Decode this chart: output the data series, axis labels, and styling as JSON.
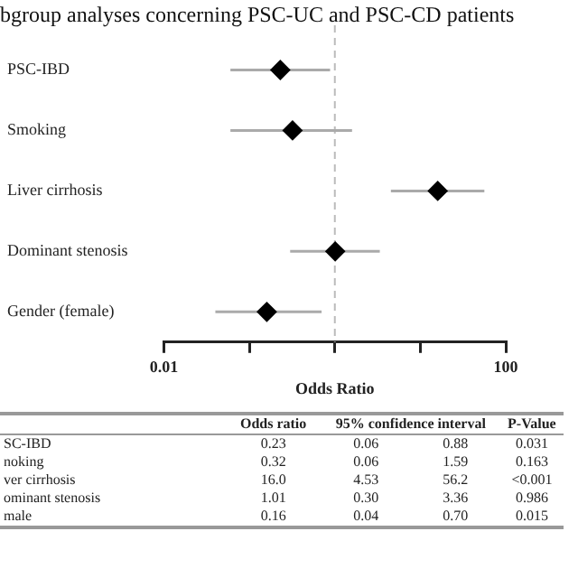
{
  "chart_data": {
    "type": "scatter",
    "title": "bgroup analyses concerning PSC-UC and PSC-CD patients",
    "orientation": "horizontal",
    "categories": [
      "PSC-IBD",
      "Smoking",
      "Liver cirrhosis",
      "Dominant stenosis",
      "Gender (female)"
    ],
    "values": [
      0.23,
      0.32,
      16.0,
      1.01,
      0.16
    ],
    "errors": [
      [
        0.06,
        0.88
      ],
      [
        0.06,
        1.59
      ],
      [
        4.53,
        56.2
      ],
      [
        0.3,
        3.36
      ],
      [
        0.04,
        0.7
      ]
    ],
    "color": "#000000",
    "marker": "diamond",
    "log": "x",
    "xlim": [
      0.01,
      100
    ],
    "xticks": [
      {
        "value": 0.01,
        "label": "0.01"
      },
      {
        "value": 0.1,
        "label": null
      },
      {
        "value": 1,
        "label": null
      },
      {
        "value": 10,
        "label": null
      },
      {
        "value": 100,
        "label": "100"
      }
    ],
    "xlabel": "Odds Ratio",
    "grid": false,
    "legend": false,
    "ref_lines": [
      {
        "axis": "x",
        "value": 1,
        "label": null,
        "color": "#bbbbbb",
        "line_style": "dashed"
      }
    ],
    "annotations": [
      "Odds ratio",
      "95% confidence interval",
      "P-Value",
      "SC-IBD",
      "0.23",
      "0.06",
      "0.88",
      "0.031",
      "noking",
      "0.32",
      "0.06",
      "1.59",
      "0.163",
      "ver cirrhosis",
      "16.0",
      "4.53",
      "56.2",
      "<0.001",
      "ominant stenosis",
      "1.01",
      "0.30",
      "3.36",
      "0.986",
      "male",
      "0.16",
      "0.04",
      "0.70",
      "0.015"
    ]
  }
}
